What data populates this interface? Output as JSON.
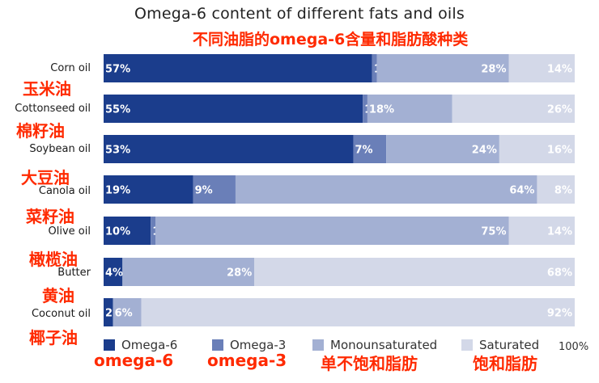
{
  "chart_data": {
    "type": "bar",
    "title": "Omega-6 content of different fats and oils",
    "categories": [
      "Corn oil",
      "Cottonseed oil",
      "Soybean oil",
      "Canola oil",
      "Olive oil",
      "Butter",
      "Coconut oil"
    ],
    "series": [
      {
        "name": "Omega-6",
        "color": "#1b3d8c",
        "values": [
          57,
          55,
          53,
          19,
          10,
          4,
          2
        ],
        "labels": [
          "57%",
          "55%",
          "53%",
          "19%",
          "10%",
          "4%",
          "2%"
        ]
      },
      {
        "name": "Omega-3",
        "color": "#6a7fb8",
        "values": [
          1,
          1,
          7,
          9,
          1,
          0,
          0
        ],
        "labels": [
          "1%",
          "1%",
          "7%",
          "9%",
          "1%",
          "",
          ""
        ]
      },
      {
        "name": "Monounsaturated",
        "color": "#a3b0d3",
        "values": [
          28,
          18,
          24,
          64,
          75,
          28,
          6
        ],
        "labels": [
          "28%",
          "18%",
          "24%",
          "64%",
          "75%",
          "28%",
          "6%"
        ]
      },
      {
        "name": "Saturated",
        "color": "#d3d8e8",
        "values": [
          14,
          26,
          16,
          8,
          14,
          68,
          92
        ],
        "labels": [
          "14%",
          "26%",
          "16%",
          "8%",
          "14%",
          "68%",
          "92%"
        ]
      }
    ],
    "xlim": [
      0,
      100
    ],
    "x_end_label": "100%",
    "legend": "bottom"
  },
  "annotations": {
    "title_cn": "不同油脂的omega-6含量和脂肪酸种类",
    "row_labels_cn": [
      "玉米油",
      "棉籽油",
      "大豆油",
      "菜籽油",
      "橄榄油",
      "黄油",
      "椰子油"
    ],
    "legend_cn": [
      "omega-6",
      "omega-3",
      "单不饱和脂肪",
      "饱和脂肪"
    ]
  }
}
